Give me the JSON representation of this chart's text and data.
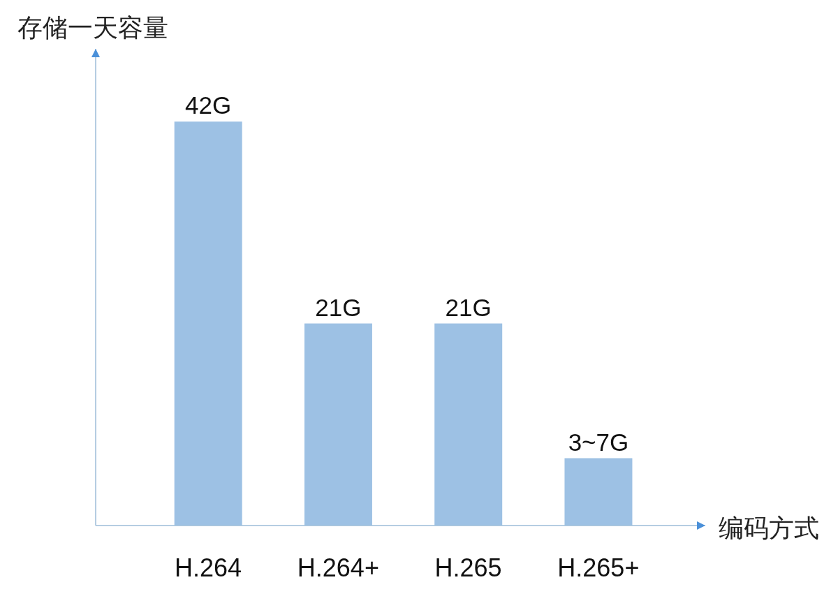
{
  "chart_data": {
    "type": "bar",
    "ylabel": "存储一天容量",
    "xlabel": "编码方式",
    "categories": [
      "H.264",
      "H.264+",
      "H.265",
      "H.265+"
    ],
    "values": [
      42,
      21,
      21,
      7
    ],
    "color": "#9dc1e4",
    "value_labels": [
      "42G",
      "21G",
      "21G",
      "3~7G"
    ],
    "tick_labels": "x"
  }
}
